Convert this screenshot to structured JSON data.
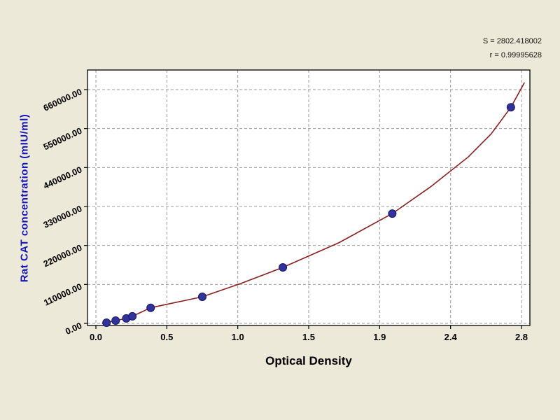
{
  "stats": {
    "line1": "S = 2802.418002",
    "line2": "r = 0.99995628"
  },
  "chart_data": {
    "type": "scatter",
    "title": "",
    "xlabel": "Optical Density",
    "ylabel": "Rat CAT concentration (mIU/ml)",
    "x_ticks": [
      "0.0",
      "0.5",
      "1.0",
      "1.5",
      "1.9",
      "2.4",
      "2.8"
    ],
    "y_ticks": [
      "0.00",
      "110000.00",
      "220000.00",
      "330000.00",
      "440000.00",
      "550000.00",
      "660000.00"
    ],
    "xlim": [
      0,
      2.8
    ],
    "ylim": [
      0,
      660000
    ],
    "grid": "dashed",
    "legend": "none",
    "points": [
      [
        0.07,
        2000
      ],
      [
        0.13,
        8000
      ],
      [
        0.2,
        14000
      ],
      [
        0.24,
        20000
      ],
      [
        0.36,
        44000
      ],
      [
        0.7,
        75000
      ],
      [
        1.23,
        158000
      ],
      [
        1.95,
        310000
      ],
      [
        2.73,
        610000
      ]
    ],
    "curve": [
      [
        0.04,
        0
      ],
      [
        0.07,
        2000
      ],
      [
        0.13,
        8000
      ],
      [
        0.2,
        14000
      ],
      [
        0.24,
        20000
      ],
      [
        0.36,
        44000
      ],
      [
        0.5,
        57000
      ],
      [
        0.7,
        75000
      ],
      [
        0.95,
        112000
      ],
      [
        1.23,
        158000
      ],
      [
        1.6,
        228000
      ],
      [
        1.95,
        310000
      ],
      [
        2.2,
        385000
      ],
      [
        2.45,
        470000
      ],
      [
        2.6,
        535000
      ],
      [
        2.73,
        610000
      ],
      [
        2.82,
        680000
      ]
    ],
    "colors": {
      "background": "#ece9d8",
      "plot_background": "#ffffff",
      "curve": "#8b1f1f",
      "point_fill": "#32329b",
      "point_stroke": "#161668",
      "axis_label_y": "#1414b8",
      "grid": "#9a9a9a",
      "frame": "#000000"
    }
  }
}
